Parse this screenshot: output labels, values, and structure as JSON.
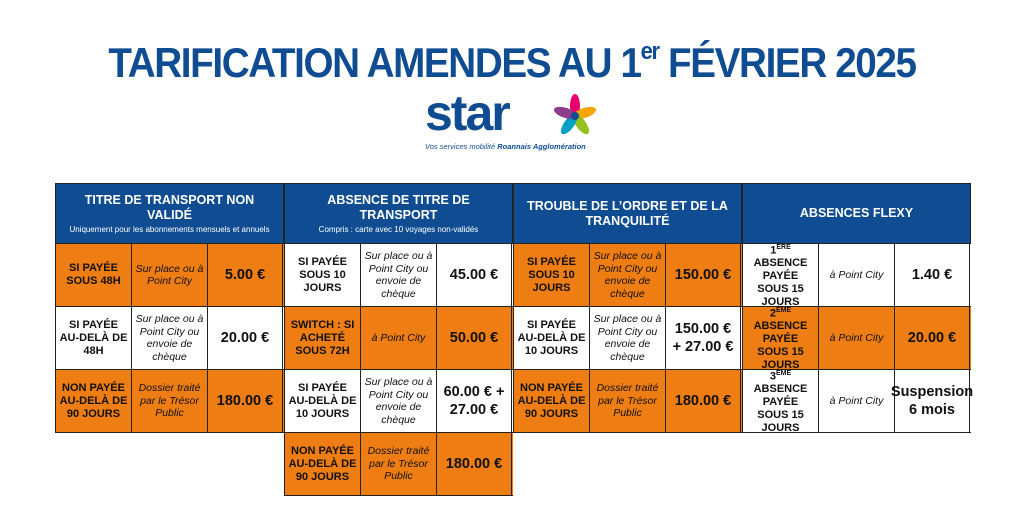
{
  "header": {
    "title": {
      "before": "TARIFICATION AMENDES AU 1",
      "sup": "er",
      "after": " FÉVRIER 2025"
    },
    "logo": {
      "text": "star",
      "tagline": "Vos services mobilité ",
      "tagline_bold": "Roannais Agglomération"
    }
  },
  "table": {
    "groups": [
      {
        "header": "TITRE DE TRANSPORT NON VALIDÉ",
        "subheader": "Uniquement pour les abonnements mensuels et annuels",
        "rows": [
          {
            "fill": "#ee7d14",
            "cells": [
              "SI PAYÉE SOUS 48H",
              "Sur place ou à Point City",
              "5.00 €"
            ]
          },
          {
            "fill": "#ffffff",
            "cells": [
              "SI PAYÉE AU-DELÀ DE 48H",
              "Sur place ou à Point City ou envoie de chèque",
              "20.00 €"
            ]
          },
          {
            "fill": "#ee7d14",
            "cells": [
              "NON PAYÉE AU-DELÀ DE 90 JOURS",
              "Dossier traité par le Trésor Public",
              "180.00 €"
            ]
          }
        ]
      },
      {
        "header": "ABSENCE DE TITRE DE TRANSPORT",
        "subheader": "Compris : carte avec 10 voyages non-validés",
        "rows": [
          {
            "fill": "#ffffff",
            "cells": [
              "SI PAYÉE SOUS 10 JOURS",
              "Sur place ou à Point City ou envoie de chèque",
              "45.00 €"
            ]
          },
          {
            "fill": "#ee7d14",
            "cells": [
              "SWITCH : SI ACHETÉ SOUS 72H",
              "à Point City",
              "50.00 €"
            ]
          },
          {
            "fill": "#ffffff",
            "cells": [
              "SI PAYÉE AU-DELÀ DE 10 JOURS",
              "Sur place ou à Point City ou envoie de chèque",
              "60.00 € + 27.00 €"
            ]
          },
          {
            "fill": "#ee7d14",
            "cells": [
              "NON PAYÉE AU-DELÀ DE 90 JOURS",
              "Dossier traité par le Trésor Public",
              "180.00 €"
            ]
          }
        ]
      },
      {
        "header": "TROUBLE DE L’ORDRE ET DE LA TRANQUILITÉ",
        "rows": [
          {
            "fill": "#ee7d14",
            "cells": [
              "SI PAYÉE SOUS 10 JOURS",
              "Sur place ou à Point City ou envoie de chèque",
              "150.00 €"
            ]
          },
          {
            "fill": "#ffffff",
            "cells": [
              "SI PAYÉE AU-DELÀ DE 10 JOURS",
              "Sur place ou à Point City ou envoie de chèque",
              "150.00 € + 27.00 €"
            ]
          },
          {
            "fill": "#ee7d14",
            "cells": [
              "NON PAYÉE AU-DELÀ DE 90 JOURS",
              "Dossier traité par le Trésor Public",
              "180.00 €"
            ]
          }
        ]
      },
      {
        "header": "ABSENCES FLEXY",
        "rows": [
          {
            "fill": "#ffffff",
            "cells": [
              {
                "num": "1",
                "sup": "ÈRE",
                "text": " ABSENCE PAYÉE SOUS 15 JOURS"
              },
              "à Point City",
              "1.40 €"
            ]
          },
          {
            "fill": "#ee7d14",
            "cells": [
              {
                "num": "2",
                "sup": "ÈME",
                "text": " ABSENCE PAYÉE SOUS 15 JOURS"
              },
              "à Point City",
              "20.00 €"
            ]
          },
          {
            "fill": "#ffffff",
            "cells": [
              {
                "num": "3",
                "sup": "ÈME",
                "text": " ABSENCE PAYÉE SOUS 15 JOURS"
              },
              "à Point City",
              "Suspension 6 mois"
            ]
          }
        ]
      }
    ]
  }
}
